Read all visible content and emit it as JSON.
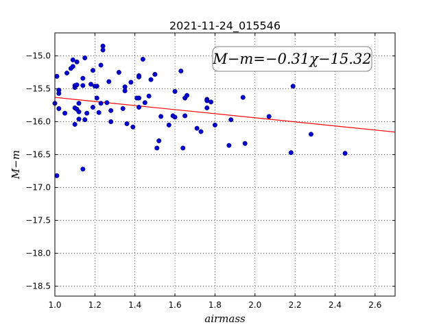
{
  "chart_data": {
    "type": "scatter",
    "title": "2021-11-24_015546",
    "xlabel": "airmass",
    "ylabel": "M−m",
    "xlim": [
      1.0,
      2.7
    ],
    "ylim": [
      -18.65,
      -14.65
    ],
    "y_inverted": true,
    "grid": true,
    "x_ticks": [
      1.0,
      1.2,
      1.4,
      1.6,
      1.8,
      2.0,
      2.2,
      2.4,
      2.6
    ],
    "x_tick_labels": [
      "1.0",
      "1.2",
      "1.4",
      "1.6",
      "1.8",
      "2.0",
      "2.2",
      "2.4",
      "2.6"
    ],
    "y_ticks": [
      -15.0,
      -15.5,
      -16.0,
      -16.5,
      -17.0,
      -17.5,
      -18.0,
      -18.5
    ],
    "y_tick_labels": [
      "−15.0",
      "−15.5",
      "−16.0",
      "−16.5",
      "−17.0",
      "−17.5",
      "−18.0",
      "−18.5"
    ],
    "annotation": "M−m=−0.31χ−15.32",
    "fit": {
      "slope": -0.31,
      "intercept": -15.32,
      "color": "#ff0000"
    },
    "point_color": "#0000cc",
    "points": [
      [
        1.0,
        -15.72
      ],
      [
        1.01,
        -16.82
      ],
      [
        1.01,
        -15.31
      ],
      [
        1.02,
        -15.52
      ],
      [
        1.02,
        -15.57
      ],
      [
        1.02,
        -15.8
      ],
      [
        1.05,
        -15.87
      ],
      [
        1.06,
        -15.26
      ],
      [
        1.08,
        -15.19
      ],
      [
        1.09,
        -15.16
      ],
      [
        1.09,
        -15.06
      ],
      [
        1.1,
        -15.45
      ],
      [
        1.1,
        -15.48
      ],
      [
        1.1,
        -16.04
      ],
      [
        1.1,
        -15.79
      ],
      [
        1.11,
        -15.09
      ],
      [
        1.11,
        -15.44
      ],
      [
        1.11,
        -15.81
      ],
      [
        1.12,
        -15.72
      ],
      [
        1.12,
        -15.85
      ],
      [
        1.12,
        -15.96
      ],
      [
        1.14,
        -15.34
      ],
      [
        1.14,
        -15.45
      ],
      [
        1.14,
        -16.72
      ],
      [
        1.15,
        -15.03
      ],
      [
        1.15,
        -15.97
      ],
      [
        1.16,
        -15.87
      ],
      [
        1.18,
        -15.43
      ],
      [
        1.19,
        -15.22
      ],
      [
        1.19,
        -15.78
      ],
      [
        1.2,
        -15.46
      ],
      [
        1.21,
        -15.46
      ],
      [
        1.21,
        -15.64
      ],
      [
        1.22,
        -15.86
      ],
      [
        1.23,
        -15.14
      ],
      [
        1.23,
        -15.72
      ],
      [
        1.24,
        -14.85
      ],
      [
        1.24,
        -14.91
      ],
      [
        1.26,
        -15.71
      ],
      [
        1.27,
        -15.39
      ],
      [
        1.28,
        -15.83
      ],
      [
        1.28,
        -16.0
      ],
      [
        1.32,
        -15.25
      ],
      [
        1.34,
        -15.8
      ],
      [
        1.35,
        -15.53
      ],
      [
        1.35,
        -15.47
      ],
      [
        1.36,
        -16.03
      ],
      [
        1.38,
        -15.4
      ],
      [
        1.39,
        -16.08
      ],
      [
        1.41,
        -15.64
      ],
      [
        1.42,
        -15.64
      ],
      [
        1.42,
        -15.3
      ],
      [
        1.42,
        -15.32
      ],
      [
        1.42,
        -15.78
      ],
      [
        1.44,
        -15.05
      ],
      [
        1.45,
        -15.71
      ],
      [
        1.47,
        -15.61
      ],
      [
        1.48,
        -15.36
      ],
      [
        1.5,
        -15.28
      ],
      [
        1.51,
        -16.4
      ],
      [
        1.52,
        -16.29
      ],
      [
        1.53,
        -15.92
      ],
      [
        1.57,
        -16.05
      ],
      [
        1.59,
        -15.91
      ],
      [
        1.6,
        -15.93
      ],
      [
        1.6,
        -15.54
      ],
      [
        1.63,
        -15.23
      ],
      [
        1.64,
        -16.4
      ],
      [
        1.65,
        -15.64
      ],
      [
        1.66,
        -15.6
      ],
      [
        1.65,
        -15.91
      ],
      [
        1.71,
        -16.1
      ],
      [
        1.73,
        -16.15
      ],
      [
        1.76,
        -15.66
      ],
      [
        1.76,
        -15.68
      ],
      [
        1.76,
        -15.79
      ],
      [
        1.78,
        -15.7
      ],
      [
        1.8,
        -16.05
      ],
      [
        1.87,
        -16.36
      ],
      [
        1.88,
        -15.97
      ],
      [
        1.94,
        -15.63
      ],
      [
        1.95,
        -16.33
      ],
      [
        2.07,
        -15.92
      ],
      [
        2.18,
        -16.47
      ],
      [
        2.19,
        -15.46
      ],
      [
        2.28,
        -16.19
      ],
      [
        2.45,
        -16.48
      ]
    ]
  }
}
